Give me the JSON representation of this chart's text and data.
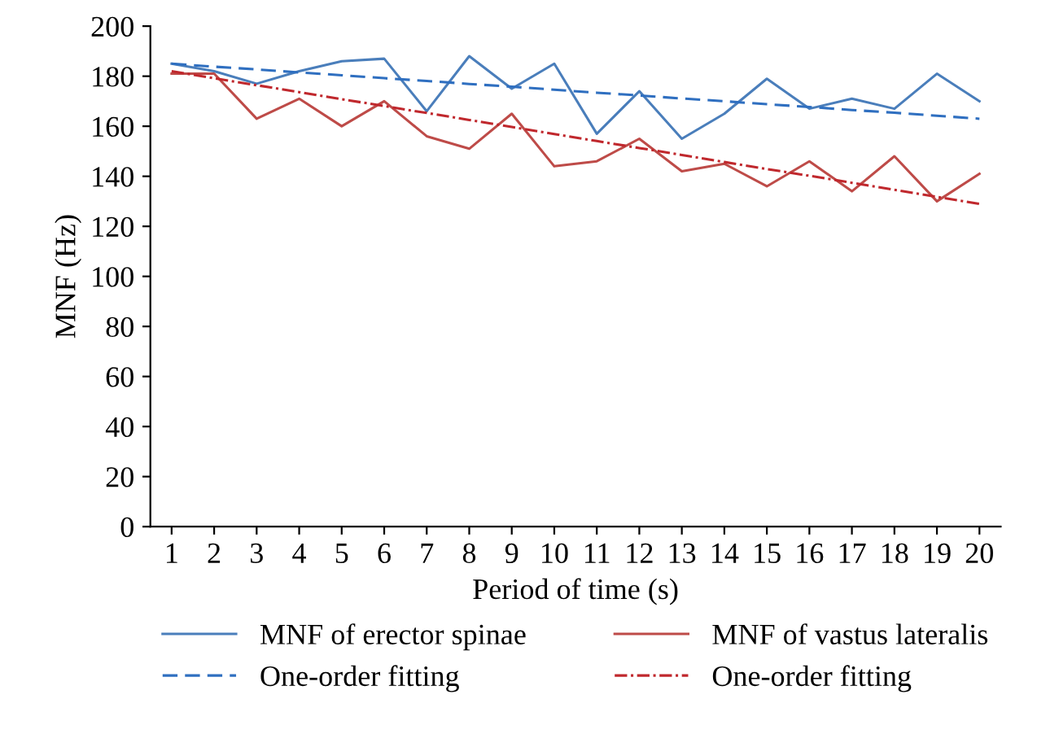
{
  "chart_data": {
    "type": "line",
    "xlabel": "Period of time (s)",
    "ylabel": "MNF (Hz)",
    "categories": [
      "1",
      "2",
      "3",
      "4",
      "5",
      "6",
      "7",
      "8",
      "9",
      "10",
      "11",
      "12",
      "13",
      "14",
      "15",
      "16",
      "17",
      "18",
      "19",
      "20"
    ],
    "ylim": [
      0,
      200
    ],
    "yticks": [
      0,
      20,
      40,
      60,
      80,
      100,
      120,
      140,
      160,
      180,
      200
    ],
    "grid": false,
    "legend": "bottom",
    "marker": "none",
    "series": [
      {
        "name": "MNF of erector spinae",
        "color": "#4a7ebb",
        "line_style": "solid",
        "values": [
          185,
          182,
          177,
          182,
          186,
          187,
          166,
          188,
          175,
          185,
          157,
          174,
          155,
          165,
          179,
          167,
          171,
          167,
          181,
          170
        ]
      },
      {
        "name": "MNF of vastus lateralis",
        "color": "#be4b48",
        "line_style": "solid",
        "values": [
          181,
          181,
          163,
          171,
          160,
          170,
          156,
          151,
          165,
          144,
          146,
          155,
          142,
          145,
          136,
          146,
          134,
          148,
          130,
          141
        ]
      },
      {
        "name": "One-order fitting",
        "color": "#2f6fc0",
        "line_style": "dashed",
        "values": [
          185,
          183.8,
          182.7,
          181.5,
          180.4,
          179.2,
          178.1,
          176.9,
          175.8,
          174.6,
          173.4,
          172.3,
          171.1,
          170,
          168.8,
          167.7,
          166.5,
          165.4,
          164.2,
          163
        ]
      },
      {
        "name": "One-order fitting",
        "color": "#c0282d",
        "line_style": "dashdot",
        "values": [
          182,
          179.2,
          176.4,
          173.6,
          170.8,
          168.1,
          165.3,
          162.5,
          159.7,
          156.9,
          154.1,
          151.3,
          148.5,
          145.7,
          142.9,
          140.2,
          137.4,
          134.6,
          131.8,
          129
        ]
      }
    ]
  }
}
